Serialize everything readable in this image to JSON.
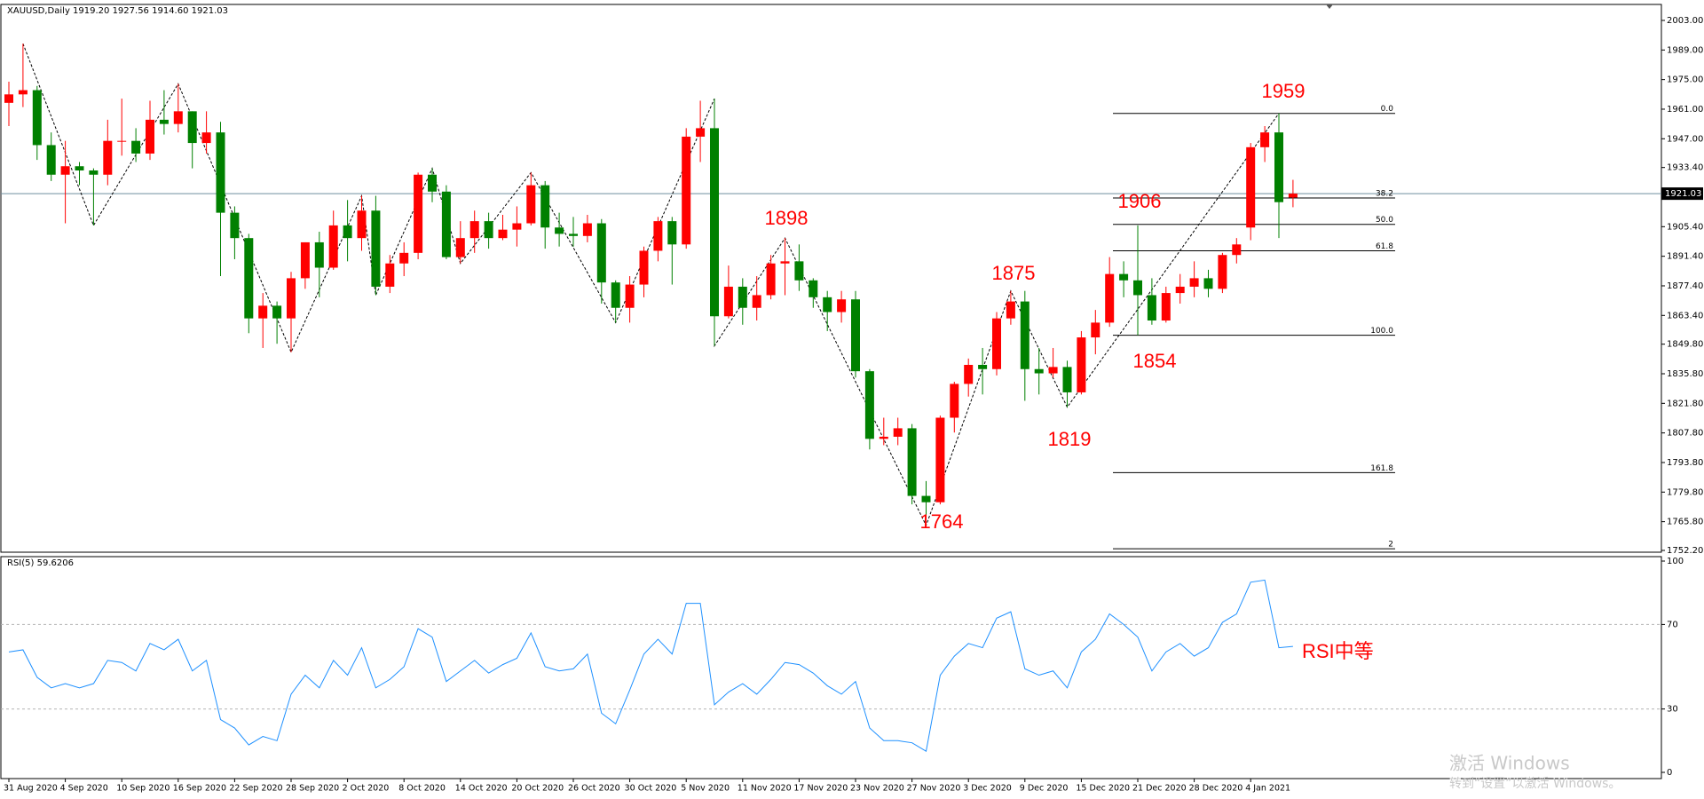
{
  "chart_data": [
    {
      "type": "candlestick",
      "title": "XAUUSD,Daily  1919.20 1927.56 1914.60 1921.03",
      "categories": [
        "31 Aug 2020",
        null,
        null,
        null,
        "4 Sep 2020",
        null,
        null,
        null,
        "10 Sep 2020",
        null,
        null,
        null,
        "16 Sep 2020",
        null,
        null,
        null,
        "22 Sep 2020",
        null,
        null,
        null,
        "28 Sep 2020",
        null,
        null,
        null,
        "2 Oct 2020",
        null,
        null,
        null,
        "8 Oct 2020",
        null,
        null,
        null,
        "14 Oct 2020",
        null,
        null,
        null,
        "20 Oct 2020",
        null,
        null,
        null,
        "26 Oct 2020",
        null,
        null,
        null,
        "30 Oct 2020",
        null,
        null,
        null,
        "5 Nov 2020",
        null,
        null,
        null,
        "11 Nov 2020",
        null,
        null,
        null,
        "17 Nov 2020",
        null,
        null,
        null,
        "23 Nov 2020",
        null,
        null,
        null,
        "27 Nov 2020",
        null,
        null,
        null,
        "3 Dec 2020",
        null,
        null,
        null,
        "9 Dec 2020",
        null,
        null,
        null,
        "15 Dec 2020",
        null,
        null,
        null,
        "21 Dec 2020",
        null,
        null,
        null,
        "28 Dec 2020",
        null,
        null,
        null,
        "4 Jan 2021",
        null,
        null,
        null
      ],
      "open": [
        1964,
        1968,
        1970,
        1944,
        1930,
        1934,
        1932,
        1930,
        1946,
        1946,
        1940,
        1956,
        1954,
        1960,
        1945,
        1950,
        1912,
        1900,
        1862,
        1868,
        1862,
        1881,
        1898,
        1886,
        1906,
        1900,
        1913,
        1877,
        1888,
        1893,
        1930,
        1922,
        1891,
        1900,
        1908,
        1900,
        1904,
        1907,
        1925,
        1905,
        1902,
        1901,
        1907,
        1879,
        1867,
        1878,
        1894,
        1908,
        1897,
        1948,
        1952,
        1863,
        1877,
        1867,
        1873,
        1888,
        1889,
        1880,
        1872,
        1865,
        1871,
        1837,
        1805,
        1806,
        1810,
        1778,
        1775,
        1815,
        1831,
        1840,
        1838,
        1862,
        1870,
        1838,
        1836,
        1839,
        1827,
        1853,
        1860,
        1883,
        1880,
        1873,
        1861,
        1874,
        1877,
        1881,
        1876,
        1892,
        1905,
        1943,
        1950,
        1919.2
      ],
      "high": [
        1974,
        1992,
        1972,
        1950,
        1946,
        1936,
        1933,
        1956,
        1966,
        1952,
        1965,
        1970,
        1973,
        1960,
        1960,
        1955,
        1915,
        1902,
        1874,
        1870,
        1884,
        1898,
        1903,
        1913,
        1918,
        1920,
        1920,
        1892,
        1898,
        1931,
        1933,
        1925,
        1908,
        1913,
        1912,
        1911,
        1915,
        1931,
        1927,
        1912,
        1910,
        1911,
        1909,
        1880,
        1882,
        1896,
        1910,
        1910,
        1952,
        1965,
        1966,
        1887,
        1881,
        1882,
        1892,
        1900,
        1897,
        1881,
        1875,
        1875,
        1875,
        1838,
        1815,
        1815,
        1812,
        1785,
        1816,
        1832,
        1843,
        1848,
        1865,
        1875,
        1875,
        1848,
        1848,
        1842,
        1856,
        1866,
        1891,
        1889,
        1906,
        1881,
        1877,
        1883,
        1889,
        1885,
        1893,
        1900,
        1945,
        1953,
        1959,
        1927.56
      ],
      "low": [
        1953,
        1962,
        1937,
        1927,
        1907,
        1925,
        1906,
        1925,
        1939,
        1936,
        1937,
        1949,
        1950,
        1933,
        1940,
        1882,
        1890,
        1855,
        1848,
        1850,
        1846,
        1876,
        1872,
        1885,
        1889,
        1894,
        1873,
        1874,
        1882,
        1890,
        1917,
        1890,
        1888,
        1893,
        1895,
        1899,
        1896,
        1906,
        1895,
        1896,
        1896,
        1898,
        1869,
        1860,
        1860,
        1872,
        1889,
        1878,
        1895,
        1936,
        1849,
        1862,
        1859,
        1861,
        1871,
        1873,
        1875,
        1867,
        1856,
        1860,
        1834,
        1800,
        1802,
        1802,
        1774,
        1764,
        1774,
        1808,
        1825,
        1826,
        1835,
        1859,
        1823,
        1826,
        1834,
        1820,
        1826,
        1845,
        1858,
        1872,
        1854,
        1859,
        1860,
        1869,
        1872,
        1872,
        1874,
        1888,
        1899,
        1936,
        1900,
        1914.6
      ],
      "close": [
        1968,
        1970,
        1944,
        1930,
        1934,
        1932,
        1930,
        1946,
        1946,
        1940,
        1956,
        1954,
        1960,
        1945,
        1950,
        1912,
        1900,
        1862,
        1868,
        1862,
        1881,
        1898,
        1886,
        1906,
        1900,
        1913,
        1877,
        1888,
        1893,
        1930,
        1922,
        1891,
        1900,
        1908,
        1900,
        1904,
        1907,
        1925,
        1905,
        1902,
        1901,
        1907,
        1879,
        1867,
        1878,
        1894,
        1908,
        1897,
        1948,
        1952,
        1863,
        1877,
        1867,
        1873,
        1888,
        1889,
        1880,
        1872,
        1865,
        1871,
        1837,
        1805,
        1806,
        1810,
        1778,
        1775,
        1815,
        1831,
        1840,
        1838,
        1862,
        1870,
        1838,
        1836,
        1839,
        1827,
        1853,
        1860,
        1883,
        1880,
        1873,
        1861,
        1874,
        1877,
        1881,
        1876,
        1892,
        1897,
        1943,
        1950,
        1917,
        1921.03
      ],
      "up_color": "#ff0000",
      "down_color": "#008000",
      "ylim": [
        1752.2,
        2003.0
      ],
      "yticks": [
        {
          "value": 2003.0,
          "label": "2003.00"
        },
        {
          "value": 1989.0,
          "label": "1989.00"
        },
        {
          "value": 1975.0,
          "label": "1975.00"
        },
        {
          "value": 1961.0,
          "label": "1961.00"
        },
        {
          "value": 1947.0,
          "label": "1947.00"
        },
        {
          "value": 1933.4,
          "label": "1933.40"
        },
        {
          "value": 1919.4,
          "label": "1919.40"
        },
        {
          "value": 1905.4,
          "label": "1905.40"
        },
        {
          "value": 1891.4,
          "label": "1891.40"
        },
        {
          "value": 1877.4,
          "label": "1877.40"
        },
        {
          "value": 1863.4,
          "label": "1863.40"
        },
        {
          "value": 1849.8,
          "label": "1849.80"
        },
        {
          "value": 1835.8,
          "label": "1835.80"
        },
        {
          "value": 1821.8,
          "label": "1821.80"
        },
        {
          "value": 1807.8,
          "label": "1807.80"
        },
        {
          "value": 1793.8,
          "label": "1793.80"
        },
        {
          "value": 1779.8,
          "label": "1779.80"
        },
        {
          "value": 1765.8,
          "label": "1765.80"
        },
        {
          "value": 1752.2,
          "label": "1752.20"
        }
      ],
      "last_price": {
        "value": 1921.03,
        "label": "1921.03"
      },
      "fib_levels": [
        {
          "value": 1959,
          "label": "0.0"
        },
        {
          "value": 1919,
          "label": "38.2"
        },
        {
          "value": 1906.5,
          "label": "50.0"
        },
        {
          "value": 1894,
          "label": "61.8"
        },
        {
          "value": 1854,
          "label": "100.0"
        },
        {
          "value": 1789,
          "label": "161.8"
        },
        {
          "value": 1753,
          "label": "2"
        }
      ],
      "annotations": [
        "1959",
        "1906",
        "1898",
        "1875",
        "1854",
        "1819",
        "1764"
      ]
    },
    {
      "type": "line",
      "title": "RSI(5) 59.6206",
      "color": "#1e90ff",
      "values": [
        57,
        58,
        45,
        40,
        42,
        40,
        42,
        53,
        52,
        48,
        61,
        58,
        63,
        48,
        53,
        25,
        21,
        13,
        17,
        15,
        37,
        46,
        40,
        53,
        46,
        59,
        40,
        44,
        50,
        68,
        64,
        43,
        48,
        53,
        47,
        51,
        54,
        66,
        50,
        48,
        49,
        56,
        28,
        23,
        39,
        56,
        63,
        56,
        80,
        80,
        32,
        38,
        42,
        37,
        44,
        52,
        51,
        47,
        41,
        37,
        43,
        21,
        15,
        15,
        14,
        10,
        46,
        55,
        61,
        59,
        73,
        76,
        49,
        46,
        48,
        40,
        57,
        63,
        75,
        70,
        64,
        48,
        57,
        61,
        55,
        59,
        71,
        75,
        90,
        91,
        59,
        59.6206
      ],
      "ylim": [
        0,
        100
      ],
      "yticks": [
        100,
        70,
        30,
        0
      ],
      "levels": [
        70,
        30
      ],
      "annotation": "RSI中等"
    }
  ],
  "watermark": {
    "title": "激活 Windows",
    "subtitle": "转到“设置”以激活 Windows。"
  }
}
